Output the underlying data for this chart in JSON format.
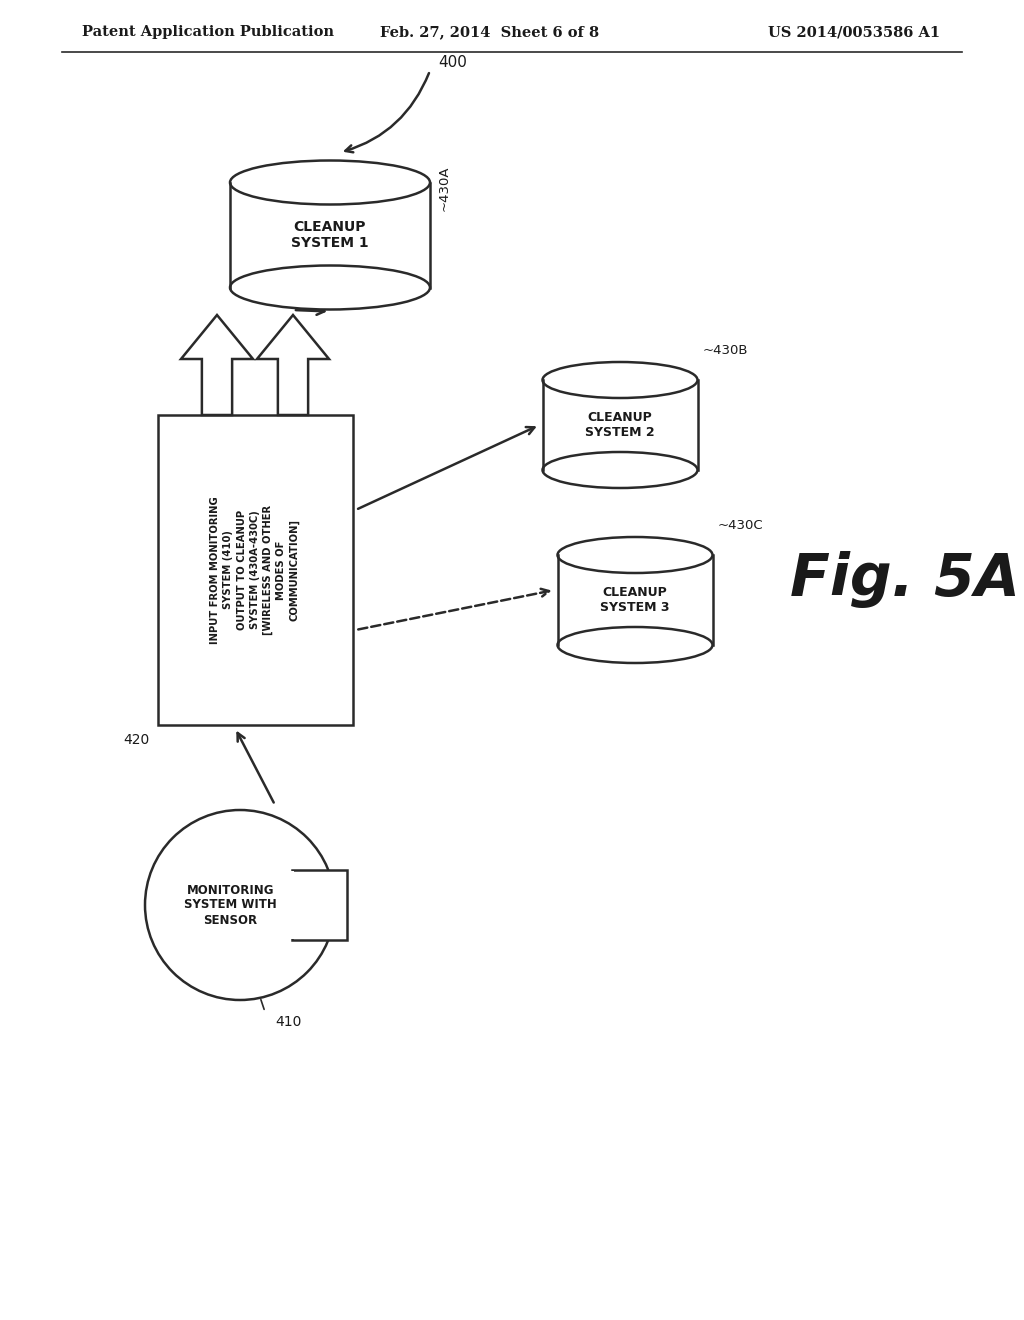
{
  "bg_color": "#ffffff",
  "header_left": "Patent Application Publication",
  "header_center": "Feb. 27, 2014  Sheet 6 of 8",
  "header_right": "US 2014/0053586 A1",
  "fig_label": "Fig. 5A",
  "label_400": "400",
  "label_420": "420",
  "label_410": "410",
  "label_430A": "~430A",
  "label_430B": "~430B",
  "label_430C": "~430C",
  "cylinder1_text": "CLEANUP\nSYSTEM 1",
  "cylinder2_text": "CLEANUP\nSYSTEM 2",
  "cylinder3_text": "CLEANUP\nSYSTEM 3",
  "cloud_text": "MONITORING\nSYSTEM WITH\nSENSOR",
  "box_text": "INPUT FROM MONITORING\nSYSTEM (410)\nOUTPUT TO CLEANUP\nSYSTEM (430A-430C)\n[WIRELESS AND OTHER\nMODES OF\nCOMMUNICATION]",
  "line_color": "#2a2a2a",
  "text_color": "#1a1a1a"
}
